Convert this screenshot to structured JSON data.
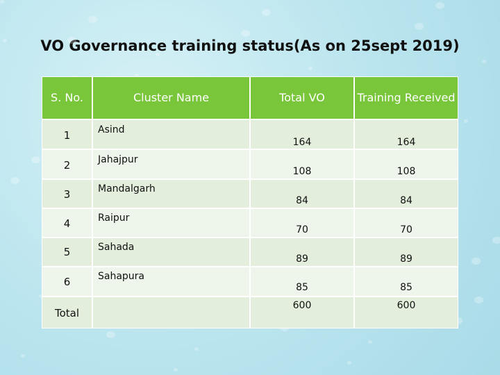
{
  "title": "VO Governance training status(As on 25sept 2019)",
  "table": {
    "headers": [
      "S. No.",
      "Cluster Name",
      "Total VO",
      "Training Received"
    ],
    "rows": [
      [
        1,
        "Asind",
        164,
        164
      ],
      [
        2,
        "Jahajpur",
        108,
        108
      ],
      [
        3,
        "Mandalgarh",
        84,
        84
      ],
      [
        4,
        "Raipur",
        70,
        70
      ],
      [
        5,
        "Sahada",
        89,
        89
      ],
      [
        6,
        "Sahapura",
        85,
        85
      ]
    ],
    "total": {
      "label": "Total",
      "total_vo": 600,
      "training_received": 600
    }
  }
}
